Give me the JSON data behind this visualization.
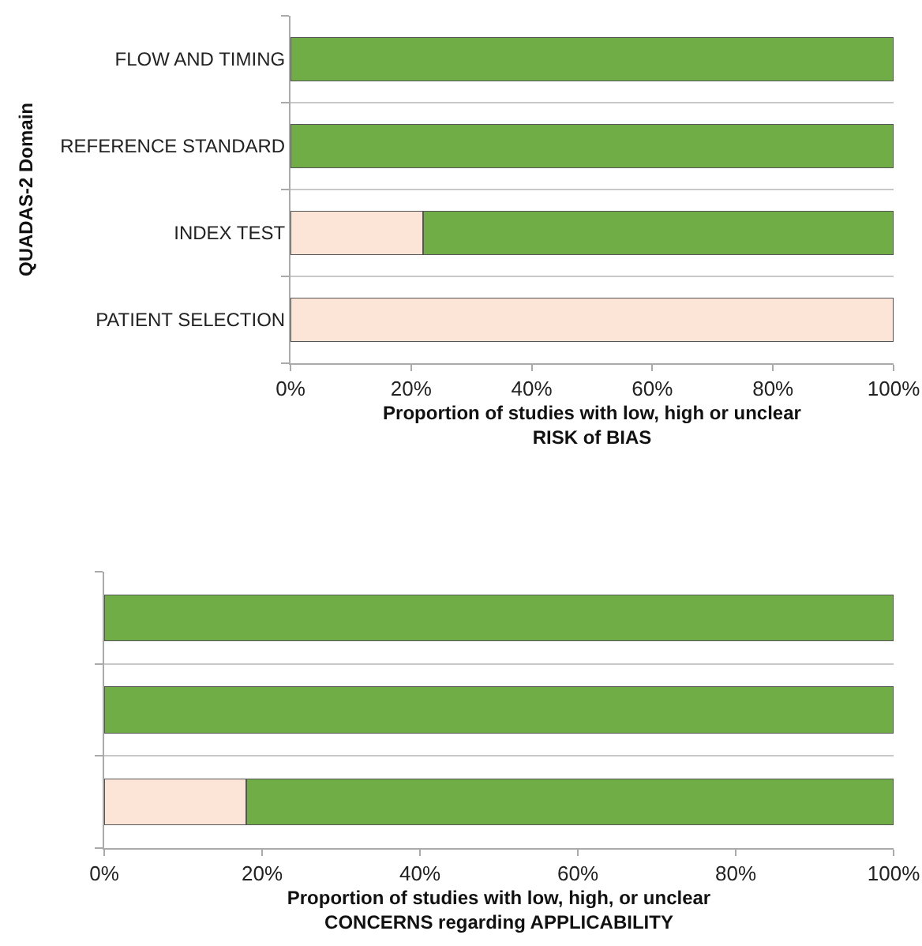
{
  "chart_data": [
    {
      "type": "bar",
      "orientation": "horizontal",
      "stacked": true,
      "ylabel": "QUADAS-2 Domain",
      "xlabel": "Proportion of studies with low, high or unclear\nRISK of BIAS",
      "categories": [
        "FLOW AND TIMING",
        "REFERENCE STANDARD",
        "INDEX TEST",
        "PATIENT SELECTION"
      ],
      "series": [
        {
          "color": "#fce4d6",
          "values": [
            0,
            0,
            22,
            100
          ]
        },
        {
          "color": "#70ad47",
          "values": [
            100,
            100,
            78,
            0
          ]
        }
      ],
      "xlim": [
        0,
        100
      ],
      "xticks": [
        {
          "value": 0,
          "label": "0%"
        },
        {
          "value": 20,
          "label": "20%"
        },
        {
          "value": 40,
          "label": "40%"
        },
        {
          "value": 60,
          "label": "60%"
        },
        {
          "value": 80,
          "label": "80%"
        },
        {
          "value": 100,
          "label": "100%"
        }
      ],
      "grid": "y"
    },
    {
      "type": "bar",
      "orientation": "horizontal",
      "stacked": true,
      "xlabel": "Proportion of studies with low, high, or unclear\nCONCERNS regarding APPLICABILITY",
      "categories": [
        null,
        null,
        null
      ],
      "series": [
        {
          "color": "#fce4d6",
          "values": [
            0,
            0,
            18
          ]
        },
        {
          "color": "#70ad47",
          "values": [
            100,
            100,
            82
          ]
        }
      ],
      "xlim": [
        0,
        100
      ],
      "xticks": [
        {
          "value": 0,
          "label": "0%"
        },
        {
          "value": 20,
          "label": "20%"
        },
        {
          "value": 40,
          "label": "40%"
        },
        {
          "value": 60,
          "label": "60%"
        },
        {
          "value": 80,
          "label": "80%"
        },
        {
          "value": 100,
          "label": "100%"
        }
      ],
      "grid": "y"
    }
  ]
}
